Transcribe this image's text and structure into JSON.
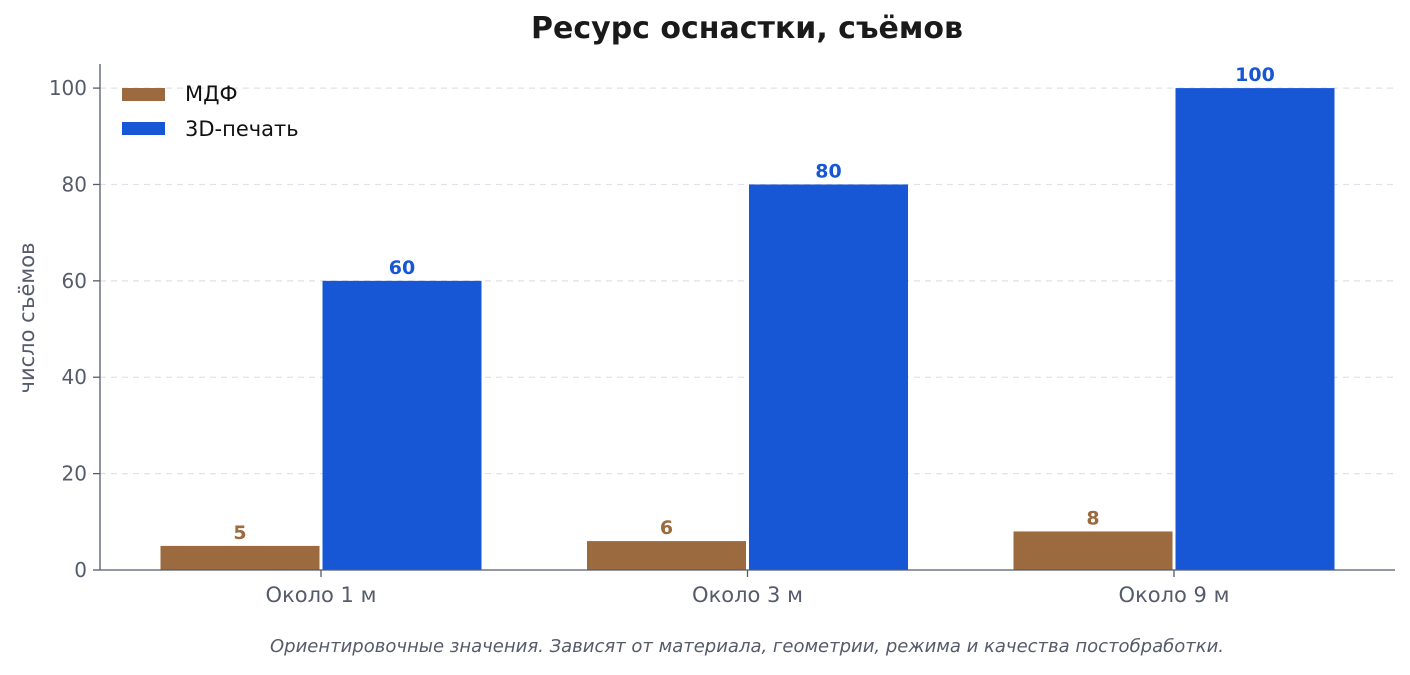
{
  "chart_data": {
    "type": "bar",
    "title": "Ресурс оснастки, съёмов",
    "xlabel": "",
    "ylabel": "число съёмов",
    "categories": [
      "Около 1 м",
      "Около 3 м",
      "Около 9 м"
    ],
    "series": [
      {
        "name": "МДФ",
        "color": "#9b6a3f",
        "values": [
          5,
          6,
          8
        ]
      },
      {
        "name": "3D-печать",
        "color": "#1757d6",
        "values": [
          60,
          80,
          100
        ]
      }
    ],
    "ylim": [
      0,
      105
    ],
    "yticks": [
      0,
      20,
      40,
      60,
      80,
      100
    ],
    "grid": true,
    "legend_position": "top-left",
    "footnote": "Ориентировочные значения. Зависят от материала, геометрии, режима и качества постобработки."
  }
}
